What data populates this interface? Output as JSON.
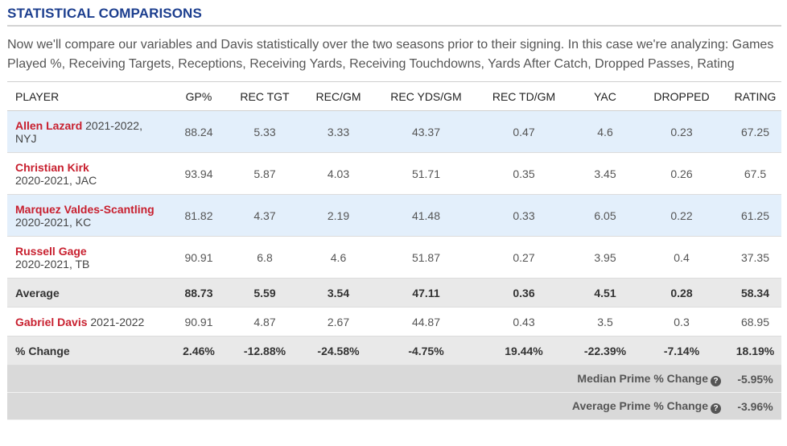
{
  "section": {
    "title": "STATISTICAL COMPARISONS",
    "intro": "Now we'll compare our variables and Davis statistically over the two seasons prior to their signing. In this case we're analyzing: Games Played %, Receiving Targets, Receptions, Receiving Yards, Receiving Touchdowns, Yards After Catch, Dropped Passes, Rating"
  },
  "table": {
    "headers": [
      "PLAYER",
      "GP%",
      "REC TGT",
      "REC/GM",
      "REC YDS/GM",
      "REC TD/GM",
      "YAC",
      "DROPPED",
      "RATING"
    ],
    "players": [
      {
        "name": "Allen Lazard",
        "detail": " 2021-2022, NYJ",
        "values": [
          "88.24",
          "5.33",
          "3.33",
          "43.37",
          "0.47",
          "4.6",
          "0.23",
          "67.25"
        ]
      },
      {
        "name": "Christian Kirk",
        "detail": "2020-2021, JAC",
        "values": [
          "93.94",
          "5.87",
          "4.03",
          "51.71",
          "0.35",
          "3.45",
          "0.26",
          "67.5"
        ]
      },
      {
        "name": "Marquez Valdes-Scantling",
        "detail": " 2020-2021, KC",
        "values": [
          "81.82",
          "4.37",
          "2.19",
          "41.48",
          "0.33",
          "6.05",
          "0.22",
          "61.25"
        ]
      },
      {
        "name": "Russell Gage",
        "detail": "2020-2021, TB",
        "values": [
          "90.91",
          "6.8",
          "4.6",
          "51.87",
          "0.27",
          "3.95",
          "0.4",
          "37.35"
        ]
      }
    ],
    "average": {
      "label": "Average",
      "values": [
        "88.73",
        "5.59",
        "3.54",
        "47.11",
        "0.36",
        "4.51",
        "0.28",
        "58.34"
      ]
    },
    "subject": {
      "name": "Gabriel Davis",
      "detail": " 2021-2022",
      "values": [
        "90.91",
        "4.87",
        "2.67",
        "44.87",
        "0.43",
        "3.5",
        "0.3",
        "68.95"
      ]
    },
    "change": {
      "label": "% Change",
      "values": [
        "2.46%",
        "-12.88%",
        "-24.58%",
        "-4.75%",
        "19.44%",
        "-22.39%",
        "-7.14%",
        "18.19%"
      ]
    },
    "summary": [
      {
        "label": "Median Prime % Change",
        "value": "-5.95%",
        "icon": "help-icon"
      },
      {
        "label": "Average Prime % Change",
        "value": "-3.96%",
        "icon": "help-icon"
      }
    ]
  }
}
